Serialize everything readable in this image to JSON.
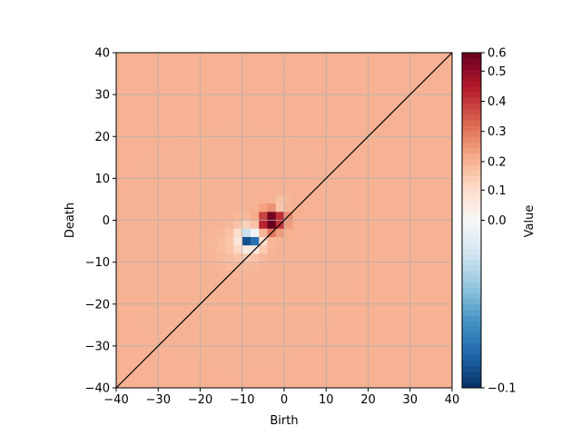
{
  "chart_data": {
    "type": "heatmap",
    "title": "",
    "xlabel": "Birth",
    "ylabel": "Death",
    "xlim": [
      -40,
      40
    ],
    "ylim": [
      -40,
      40
    ],
    "x_ticks": [
      -40,
      -30,
      -20,
      -10,
      0,
      10,
      20,
      30,
      40
    ],
    "y_ticks": [
      -40,
      -30,
      -20,
      -10,
      0,
      10,
      20,
      30,
      40
    ],
    "x_tick_labels": [
      "−40",
      "−30",
      "−20",
      "−10",
      "0",
      "10",
      "20",
      "30",
      "40"
    ],
    "y_tick_labels": [
      "−40",
      "−30",
      "−20",
      "−10",
      "0",
      "10",
      "20",
      "30",
      "40"
    ],
    "grid": true,
    "background_value": 0.2,
    "diagonal_line": {
      "from": [
        -40,
        -40
      ],
      "to": [
        40,
        40
      ],
      "color": "#000000"
    },
    "colormap": "RdBu_r",
    "colorbar": {
      "label": "Value",
      "min": -0.1,
      "max": 0.6,
      "ticks": [
        -0.1,
        0.0,
        0.1,
        0.2,
        0.3,
        0.4,
        0.5,
        0.6
      ],
      "tick_labels": [
        "−0.1",
        "0.0",
        "0.1",
        "0.2",
        "0.3",
        "0.4",
        "0.5",
        "0.6"
      ],
      "tick_positions_fraction": [
        0.0,
        0.5,
        0.59,
        0.675,
        0.765,
        0.855,
        0.945,
        1.0
      ]
    },
    "hotspots": [
      {
        "x": -3.5,
        "y": -0.5,
        "value": 0.6,
        "spread": 2.2
      },
      {
        "x": -1.5,
        "y": 1.0,
        "value": 0.4,
        "spread": 2.5
      },
      {
        "x": -1.0,
        "y": 3.0,
        "value": 0.05,
        "spread": 1.8
      },
      {
        "x": -8.0,
        "y": -4.5,
        "value": -0.1,
        "spread": 2.8
      },
      {
        "x": -11.0,
        "y": -6.0,
        "value": 0.16,
        "spread": 5.0
      }
    ]
  }
}
